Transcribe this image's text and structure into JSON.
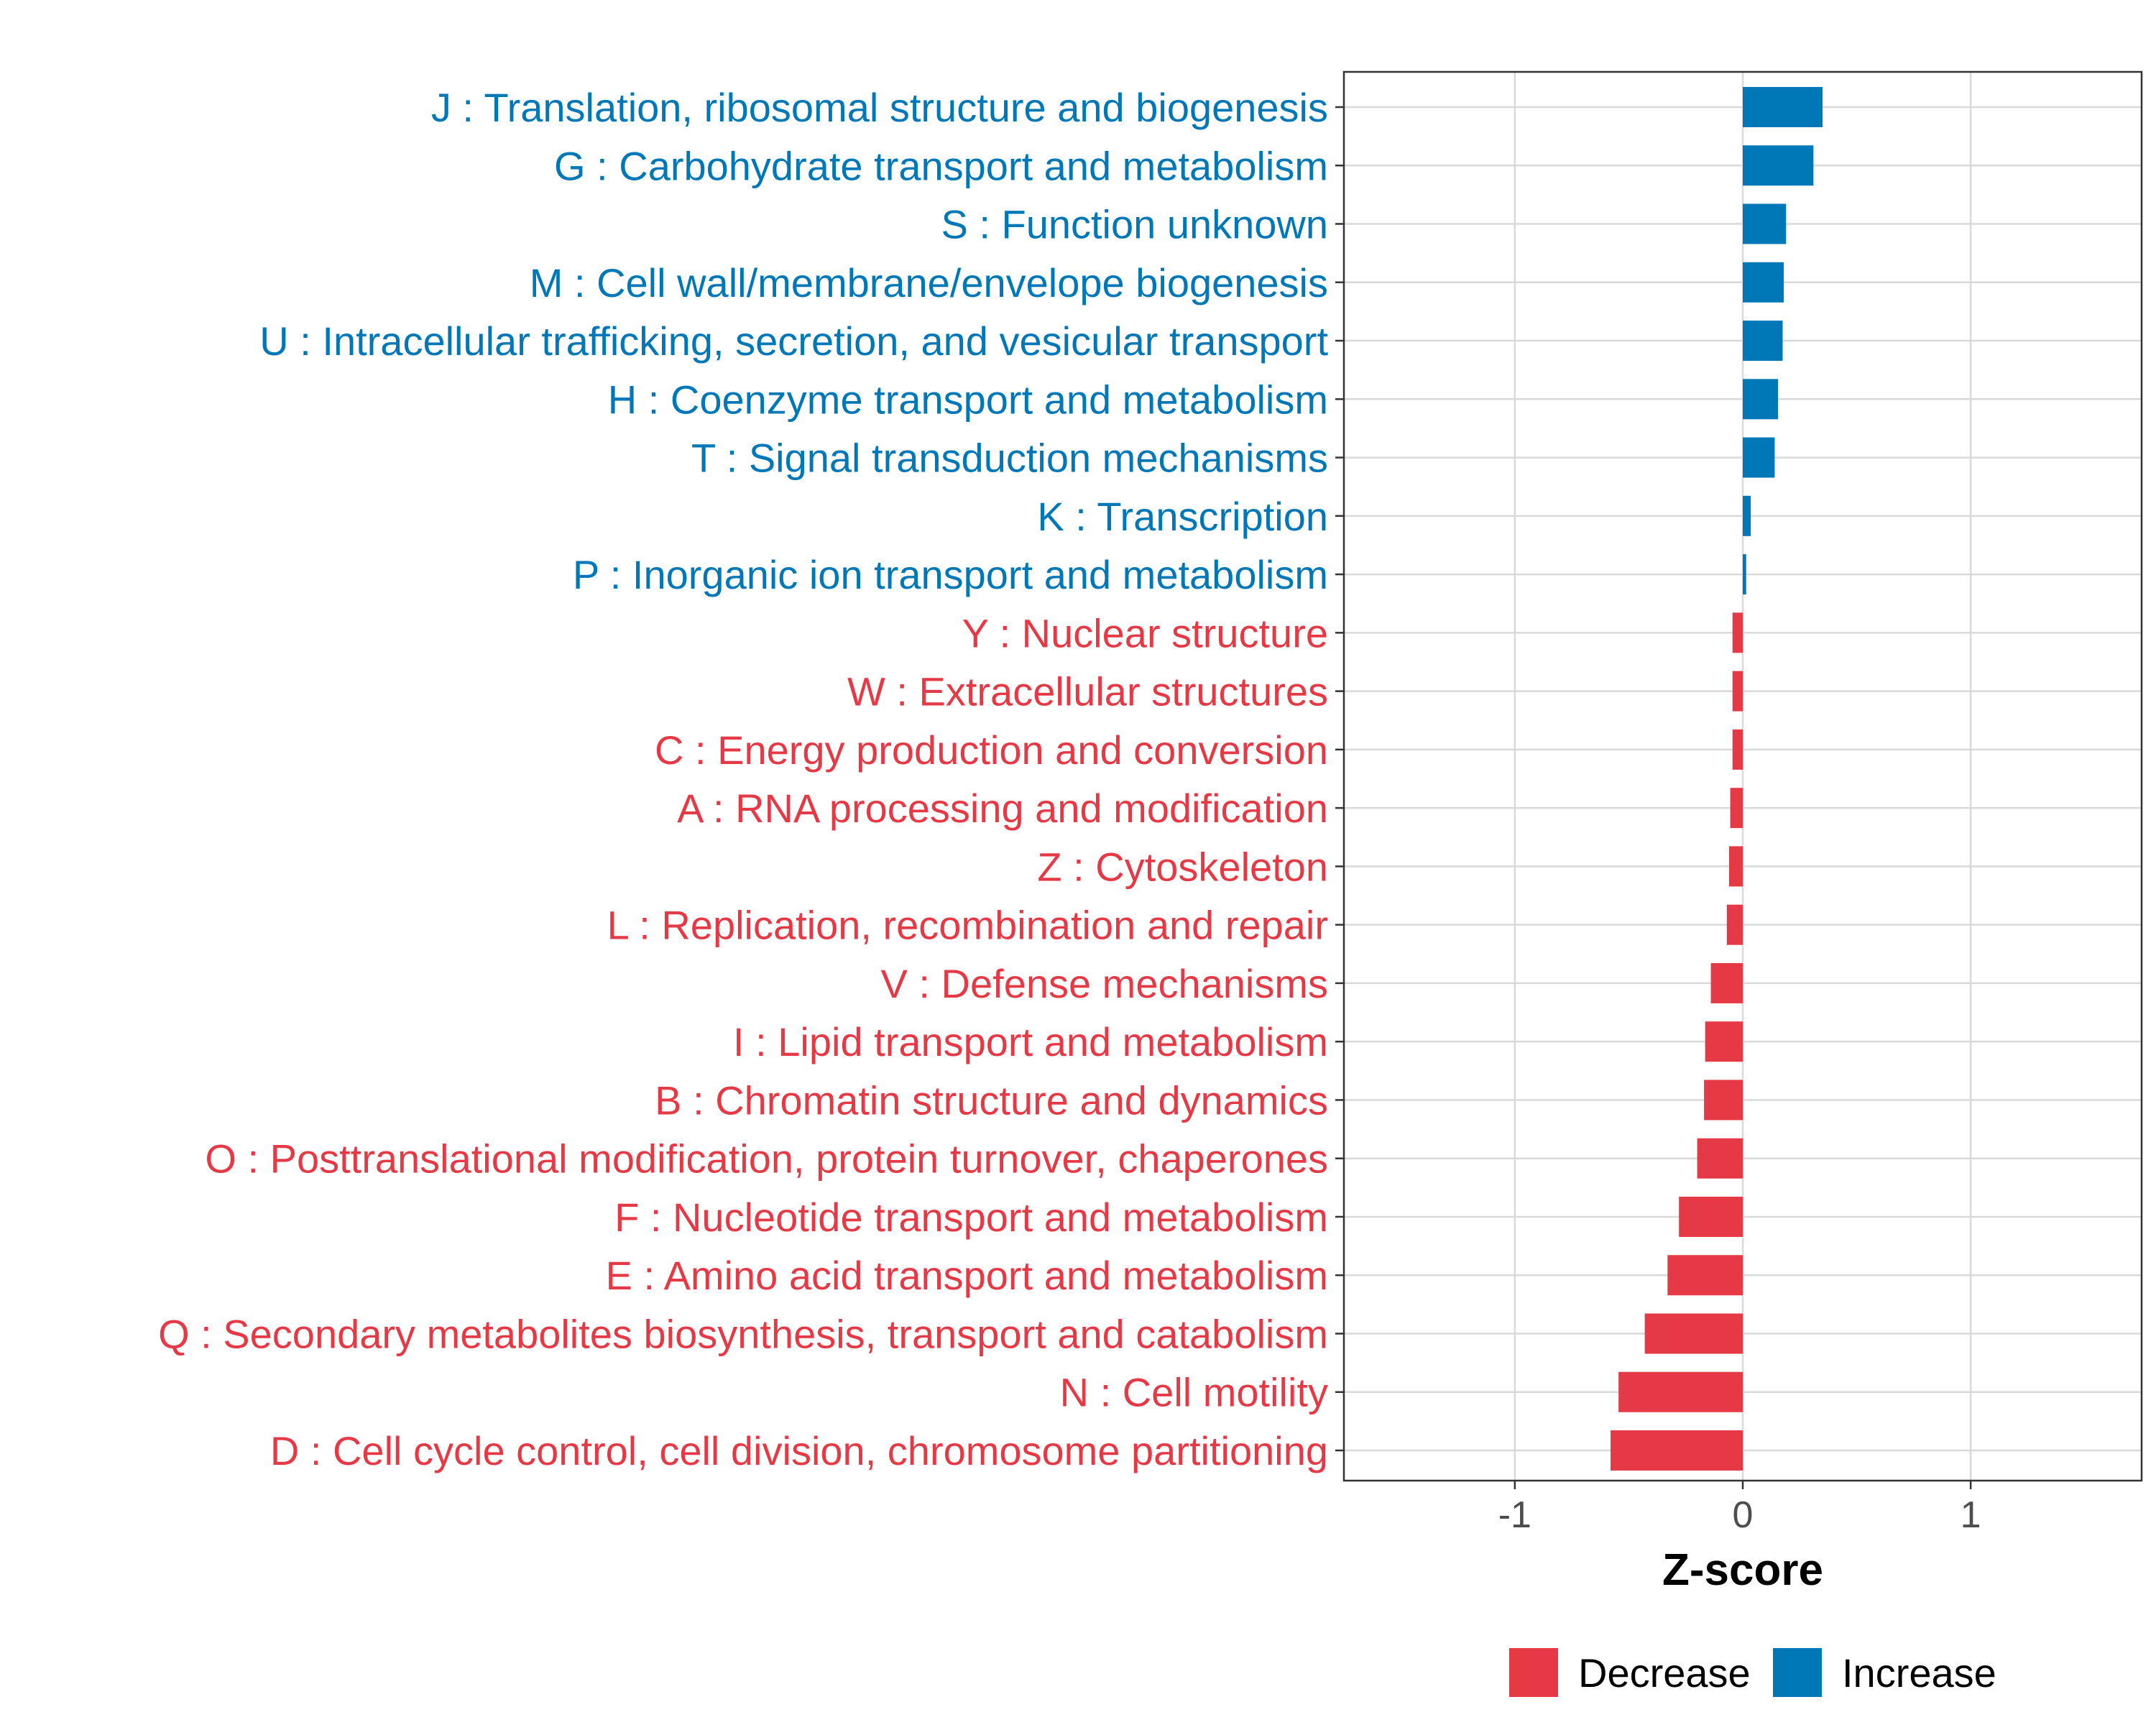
{
  "chart_data": {
    "type": "bar",
    "orientation": "horizontal",
    "xlabel": "Z-score",
    "xlim": [
      -1.75,
      1.75
    ],
    "xticks": [
      -1,
      0,
      1
    ],
    "xtick_labels": [
      "-1",
      "0",
      "1"
    ],
    "grid": true,
    "legend_position": "bottom-right",
    "colors": {
      "Decrease": "#E63946",
      "Increase": "#0077B6"
    },
    "legend": [
      {
        "key": "Decrease",
        "label": "Decrease"
      },
      {
        "key": "Increase",
        "label": "Increase"
      }
    ],
    "bars": [
      {
        "label": "J : Translation, ribosomal structure and biogenesis",
        "value": 0.35,
        "group": "Increase"
      },
      {
        "label": "G : Carbohydrate transport and metabolism",
        "value": 0.31,
        "group": "Increase"
      },
      {
        "label": "S : Function unknown",
        "value": 0.19,
        "group": "Increase"
      },
      {
        "label": "M : Cell wall/membrane/envelope biogenesis",
        "value": 0.18,
        "group": "Increase"
      },
      {
        "label": "U : Intracellular trafficking, secretion, and vesicular transport",
        "value": 0.175,
        "group": "Increase"
      },
      {
        "label": "H : Coenzyme transport and metabolism",
        "value": 0.155,
        "group": "Increase"
      },
      {
        "label": "T : Signal transduction mechanisms",
        "value": 0.14,
        "group": "Increase"
      },
      {
        "label": "K : Transcription",
        "value": 0.035,
        "group": "Increase"
      },
      {
        "label": "P : Inorganic ion transport and metabolism",
        "value": 0.015,
        "group": "Increase"
      },
      {
        "label": "Y : Nuclear structure",
        "value": -0.045,
        "group": "Decrease"
      },
      {
        "label": "W : Extracellular structures",
        "value": -0.045,
        "group": "Decrease"
      },
      {
        "label": "C : Energy production and conversion",
        "value": -0.045,
        "group": "Decrease"
      },
      {
        "label": "A : RNA processing and modification",
        "value": -0.055,
        "group": "Decrease"
      },
      {
        "label": "Z : Cytoskeleton",
        "value": -0.06,
        "group": "Decrease"
      },
      {
        "label": "L : Replication, recombination and repair",
        "value": -0.07,
        "group": "Decrease"
      },
      {
        "label": "V : Defense mechanisms",
        "value": -0.14,
        "group": "Decrease"
      },
      {
        "label": "I : Lipid transport and metabolism",
        "value": -0.165,
        "group": "Decrease"
      },
      {
        "label": "B : Chromatin structure and dynamics",
        "value": -0.17,
        "group": "Decrease"
      },
      {
        "label": "O : Posttranslational modification, protein turnover, chaperones",
        "value": -0.2,
        "group": "Decrease"
      },
      {
        "label": "F : Nucleotide transport and metabolism",
        "value": -0.28,
        "group": "Decrease"
      },
      {
        "label": "E : Amino acid transport and metabolism",
        "value": -0.33,
        "group": "Decrease"
      },
      {
        "label": "Q : Secondary metabolites biosynthesis, transport and catabolism",
        "value": -0.43,
        "group": "Decrease"
      },
      {
        "label": "N : Cell motility",
        "value": -0.545,
        "group": "Decrease"
      },
      {
        "label": "D : Cell cycle control, cell division, chromosome partitioning",
        "value": -0.58,
        "group": "Decrease"
      }
    ]
  }
}
